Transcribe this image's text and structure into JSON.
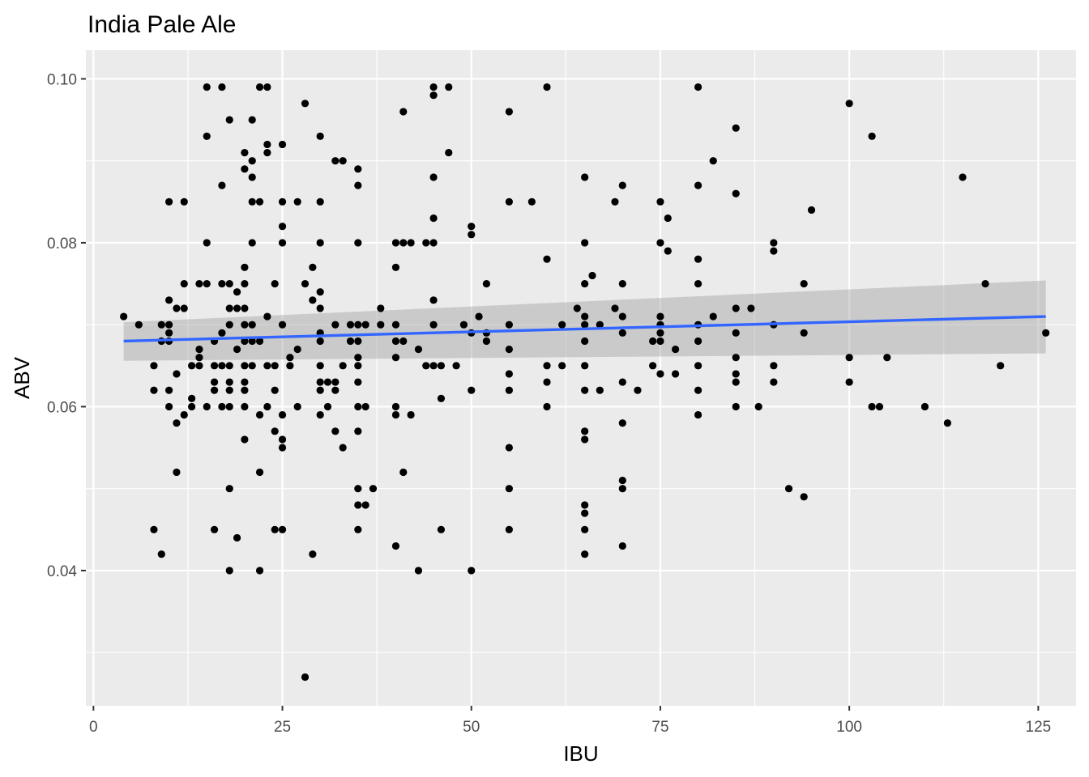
{
  "chart_data": {
    "type": "scatter",
    "title": "India Pale Ale",
    "xlabel": "IBU",
    "ylabel": "ABV",
    "xlim": [
      -1,
      130
    ],
    "ylim": [
      0.0235,
      0.1035
    ],
    "xticks": [
      0,
      25,
      50,
      75,
      100,
      125
    ],
    "xtick_labels": [
      "0",
      "25",
      "50",
      "75",
      "100",
      "125"
    ],
    "yticks": [
      0.04,
      0.06,
      0.08,
      0.1
    ],
    "ytick_labels": [
      "0.04",
      "0.06",
      "0.08",
      "0.10"
    ],
    "grid": true,
    "legend": "none",
    "colors": {
      "panel": "#ebebeb",
      "grid": "#ffffff",
      "points": "#000000",
      "trend_line": "#3366ff",
      "confidence_band": "#999999"
    },
    "trend_line": {
      "x": [
        4,
        126
      ],
      "y": [
        0.068,
        0.071
      ]
    },
    "confidence_band": {
      "x": [
        4,
        126
      ],
      "lower": [
        0.0656,
        0.0665
      ],
      "upper": [
        0.0703,
        0.0754
      ]
    },
    "points": [
      [
        4,
        0.071
      ],
      [
        6,
        0.07
      ],
      [
        8,
        0.065
      ],
      [
        8,
        0.062
      ],
      [
        8,
        0.045
      ],
      [
        9,
        0.042
      ],
      [
        9,
        0.068
      ],
      [
        9,
        0.07
      ],
      [
        10,
        0.085
      ],
      [
        10,
        0.073
      ],
      [
        10,
        0.07
      ],
      [
        10,
        0.069
      ],
      [
        10,
        0.068
      ],
      [
        10,
        0.062
      ],
      [
        10,
        0.06
      ],
      [
        11,
        0.072
      ],
      [
        11,
        0.064
      ],
      [
        11,
        0.058
      ],
      [
        11,
        0.052
      ],
      [
        12,
        0.085
      ],
      [
        12,
        0.075
      ],
      [
        12,
        0.072
      ],
      [
        12,
        0.059
      ],
      [
        13,
        0.065
      ],
      [
        13,
        0.061
      ],
      [
        13,
        0.06
      ],
      [
        14,
        0.075
      ],
      [
        14,
        0.067
      ],
      [
        14,
        0.066
      ],
      [
        14,
        0.065
      ],
      [
        15,
        0.099
      ],
      [
        15,
        0.093
      ],
      [
        15,
        0.08
      ],
      [
        15,
        0.075
      ],
      [
        15,
        0.06
      ],
      [
        16,
        0.068
      ],
      [
        16,
        0.065
      ],
      [
        16,
        0.063
      ],
      [
        16,
        0.062
      ],
      [
        16,
        0.045
      ],
      [
        17,
        0.099
      ],
      [
        17,
        0.087
      ],
      [
        17,
        0.075
      ],
      [
        17,
        0.069
      ],
      [
        17,
        0.065
      ],
      [
        17,
        0.06
      ],
      [
        18,
        0.095
      ],
      [
        18,
        0.075
      ],
      [
        18,
        0.072
      ],
      [
        18,
        0.07
      ],
      [
        18,
        0.065
      ],
      [
        18,
        0.063
      ],
      [
        18,
        0.062
      ],
      [
        18,
        0.06
      ],
      [
        18,
        0.05
      ],
      [
        18,
        0.04
      ],
      [
        19,
        0.074
      ],
      [
        19,
        0.072
      ],
      [
        19,
        0.067
      ],
      [
        19,
        0.044
      ],
      [
        20,
        0.091
      ],
      [
        20,
        0.089
      ],
      [
        20,
        0.077
      ],
      [
        20,
        0.075
      ],
      [
        20,
        0.072
      ],
      [
        20,
        0.07
      ],
      [
        20,
        0.068
      ],
      [
        20,
        0.065
      ],
      [
        20,
        0.063
      ],
      [
        20,
        0.062
      ],
      [
        20,
        0.06
      ],
      [
        20,
        0.056
      ],
      [
        21,
        0.095
      ],
      [
        21,
        0.09
      ],
      [
        21,
        0.088
      ],
      [
        21,
        0.085
      ],
      [
        21,
        0.08
      ],
      [
        21,
        0.07
      ],
      [
        21,
        0.068
      ],
      [
        21,
        0.065
      ],
      [
        22,
        0.099
      ],
      [
        22,
        0.085
      ],
      [
        22,
        0.068
      ],
      [
        22,
        0.059
      ],
      [
        22,
        0.052
      ],
      [
        22,
        0.04
      ],
      [
        23,
        0.099
      ],
      [
        23,
        0.092
      ],
      [
        23,
        0.091
      ],
      [
        23,
        0.071
      ],
      [
        23,
        0.065
      ],
      [
        23,
        0.06
      ],
      [
        24,
        0.075
      ],
      [
        24,
        0.065
      ],
      [
        24,
        0.062
      ],
      [
        24,
        0.057
      ],
      [
        24,
        0.045
      ],
      [
        25,
        0.092
      ],
      [
        25,
        0.085
      ],
      [
        25,
        0.082
      ],
      [
        25,
        0.08
      ],
      [
        25,
        0.07
      ],
      [
        25,
        0.059
      ],
      [
        25,
        0.056
      ],
      [
        25,
        0.055
      ],
      [
        25,
        0.045
      ],
      [
        26,
        0.066
      ],
      [
        26,
        0.065
      ],
      [
        27,
        0.085
      ],
      [
        27,
        0.067
      ],
      [
        27,
        0.06
      ],
      [
        28,
        0.097
      ],
      [
        28,
        0.075
      ],
      [
        28,
        0.027
      ],
      [
        29,
        0.077
      ],
      [
        29,
        0.073
      ],
      [
        29,
        0.042
      ],
      [
        30,
        0.093
      ],
      [
        30,
        0.085
      ],
      [
        30,
        0.08
      ],
      [
        30,
        0.074
      ],
      [
        30,
        0.072
      ],
      [
        30,
        0.069
      ],
      [
        30,
        0.068
      ],
      [
        30,
        0.065
      ],
      [
        30,
        0.063
      ],
      [
        30,
        0.062
      ],
      [
        30,
        0.059
      ],
      [
        31,
        0.063
      ],
      [
        31,
        0.06
      ],
      [
        32,
        0.09
      ],
      [
        32,
        0.07
      ],
      [
        32,
        0.063
      ],
      [
        32,
        0.062
      ],
      [
        32,
        0.057
      ],
      [
        33,
        0.09
      ],
      [
        33,
        0.065
      ],
      [
        33,
        0.055
      ],
      [
        34,
        0.07
      ],
      [
        34,
        0.068
      ],
      [
        35,
        0.089
      ],
      [
        35,
        0.087
      ],
      [
        35,
        0.08
      ],
      [
        35,
        0.07
      ],
      [
        35,
        0.068
      ],
      [
        35,
        0.066
      ],
      [
        35,
        0.065
      ],
      [
        35,
        0.063
      ],
      [
        35,
        0.06
      ],
      [
        35,
        0.057
      ],
      [
        35,
        0.05
      ],
      [
        35,
        0.048
      ],
      [
        35,
        0.045
      ],
      [
        36,
        0.07
      ],
      [
        36,
        0.06
      ],
      [
        36,
        0.048
      ],
      [
        37,
        0.05
      ],
      [
        38,
        0.072
      ],
      [
        38,
        0.07
      ],
      [
        40,
        0.08
      ],
      [
        40,
        0.077
      ],
      [
        40,
        0.07
      ],
      [
        40,
        0.068
      ],
      [
        40,
        0.066
      ],
      [
        40,
        0.06
      ],
      [
        40,
        0.059
      ],
      [
        40,
        0.043
      ],
      [
        41,
        0.096
      ],
      [
        41,
        0.08
      ],
      [
        41,
        0.068
      ],
      [
        41,
        0.052
      ],
      [
        42,
        0.08
      ],
      [
        42,
        0.059
      ],
      [
        43,
        0.067
      ],
      [
        43,
        0.04
      ],
      [
        44,
        0.08
      ],
      [
        44,
        0.065
      ],
      [
        45,
        0.099
      ],
      [
        45,
        0.098
      ],
      [
        45,
        0.088
      ],
      [
        45,
        0.083
      ],
      [
        45,
        0.08
      ],
      [
        45,
        0.073
      ],
      [
        45,
        0.07
      ],
      [
        45,
        0.065
      ],
      [
        46,
        0.065
      ],
      [
        46,
        0.061
      ],
      [
        46,
        0.045
      ],
      [
        47,
        0.099
      ],
      [
        47,
        0.091
      ],
      [
        48,
        0.065
      ],
      [
        49,
        0.07
      ],
      [
        50,
        0.082
      ],
      [
        50,
        0.081
      ],
      [
        50,
        0.069
      ],
      [
        50,
        0.062
      ],
      [
        50,
        0.04
      ],
      [
        51,
        0.071
      ],
      [
        52,
        0.075
      ],
      [
        52,
        0.069
      ],
      [
        52,
        0.068
      ],
      [
        55,
        0.096
      ],
      [
        55,
        0.085
      ],
      [
        55,
        0.07
      ],
      [
        55,
        0.067
      ],
      [
        55,
        0.064
      ],
      [
        55,
        0.062
      ],
      [
        55,
        0.055
      ],
      [
        55,
        0.05
      ],
      [
        55,
        0.045
      ],
      [
        58,
        0.085
      ],
      [
        60,
        0.099
      ],
      [
        60,
        0.078
      ],
      [
        60,
        0.065
      ],
      [
        60,
        0.063
      ],
      [
        60,
        0.06
      ],
      [
        62,
        0.07
      ],
      [
        62,
        0.065
      ],
      [
        64,
        0.072
      ],
      [
        65,
        0.088
      ],
      [
        65,
        0.08
      ],
      [
        65,
        0.075
      ],
      [
        65,
        0.071
      ],
      [
        65,
        0.07
      ],
      [
        65,
        0.068
      ],
      [
        65,
        0.065
      ],
      [
        65,
        0.062
      ],
      [
        65,
        0.057
      ],
      [
        65,
        0.056
      ],
      [
        65,
        0.048
      ],
      [
        65,
        0.047
      ],
      [
        65,
        0.045
      ],
      [
        65,
        0.042
      ],
      [
        66,
        0.076
      ],
      [
        67,
        0.07
      ],
      [
        67,
        0.062
      ],
      [
        69,
        0.085
      ],
      [
        69,
        0.072
      ],
      [
        70,
        0.087
      ],
      [
        70,
        0.075
      ],
      [
        70,
        0.071
      ],
      [
        70,
        0.069
      ],
      [
        70,
        0.063
      ],
      [
        70,
        0.058
      ],
      [
        70,
        0.051
      ],
      [
        70,
        0.05
      ],
      [
        70,
        0.043
      ],
      [
        72,
        0.062
      ],
      [
        74,
        0.068
      ],
      [
        74,
        0.065
      ],
      [
        75,
        0.085
      ],
      [
        75,
        0.08
      ],
      [
        75,
        0.071
      ],
      [
        75,
        0.07
      ],
      [
        75,
        0.069
      ],
      [
        75,
        0.068
      ],
      [
        75,
        0.064
      ],
      [
        76,
        0.083
      ],
      [
        76,
        0.079
      ],
      [
        77,
        0.067
      ],
      [
        77,
        0.064
      ],
      [
        80,
        0.099
      ],
      [
        80,
        0.087
      ],
      [
        80,
        0.078
      ],
      [
        80,
        0.075
      ],
      [
        80,
        0.07
      ],
      [
        80,
        0.068
      ],
      [
        80,
        0.065
      ],
      [
        80,
        0.062
      ],
      [
        80,
        0.059
      ],
      [
        82,
        0.09
      ],
      [
        82,
        0.071
      ],
      [
        85,
        0.094
      ],
      [
        85,
        0.086
      ],
      [
        85,
        0.072
      ],
      [
        85,
        0.069
      ],
      [
        85,
        0.066
      ],
      [
        85,
        0.064
      ],
      [
        85,
        0.063
      ],
      [
        85,
        0.06
      ],
      [
        87,
        0.072
      ],
      [
        88,
        0.06
      ],
      [
        90,
        0.08
      ],
      [
        90,
        0.079
      ],
      [
        90,
        0.07
      ],
      [
        90,
        0.065
      ],
      [
        90,
        0.063
      ],
      [
        92,
        0.05
      ],
      [
        94,
        0.075
      ],
      [
        94,
        0.069
      ],
      [
        94,
        0.049
      ],
      [
        95,
        0.084
      ],
      [
        100,
        0.097
      ],
      [
        100,
        0.066
      ],
      [
        100,
        0.063
      ],
      [
        103,
        0.093
      ],
      [
        103,
        0.06
      ],
      [
        104,
        0.06
      ],
      [
        105,
        0.066
      ],
      [
        110,
        0.06
      ],
      [
        113,
        0.058
      ],
      [
        115,
        0.088
      ],
      [
        118,
        0.075
      ],
      [
        120,
        0.065
      ],
      [
        126,
        0.069
      ]
    ]
  }
}
